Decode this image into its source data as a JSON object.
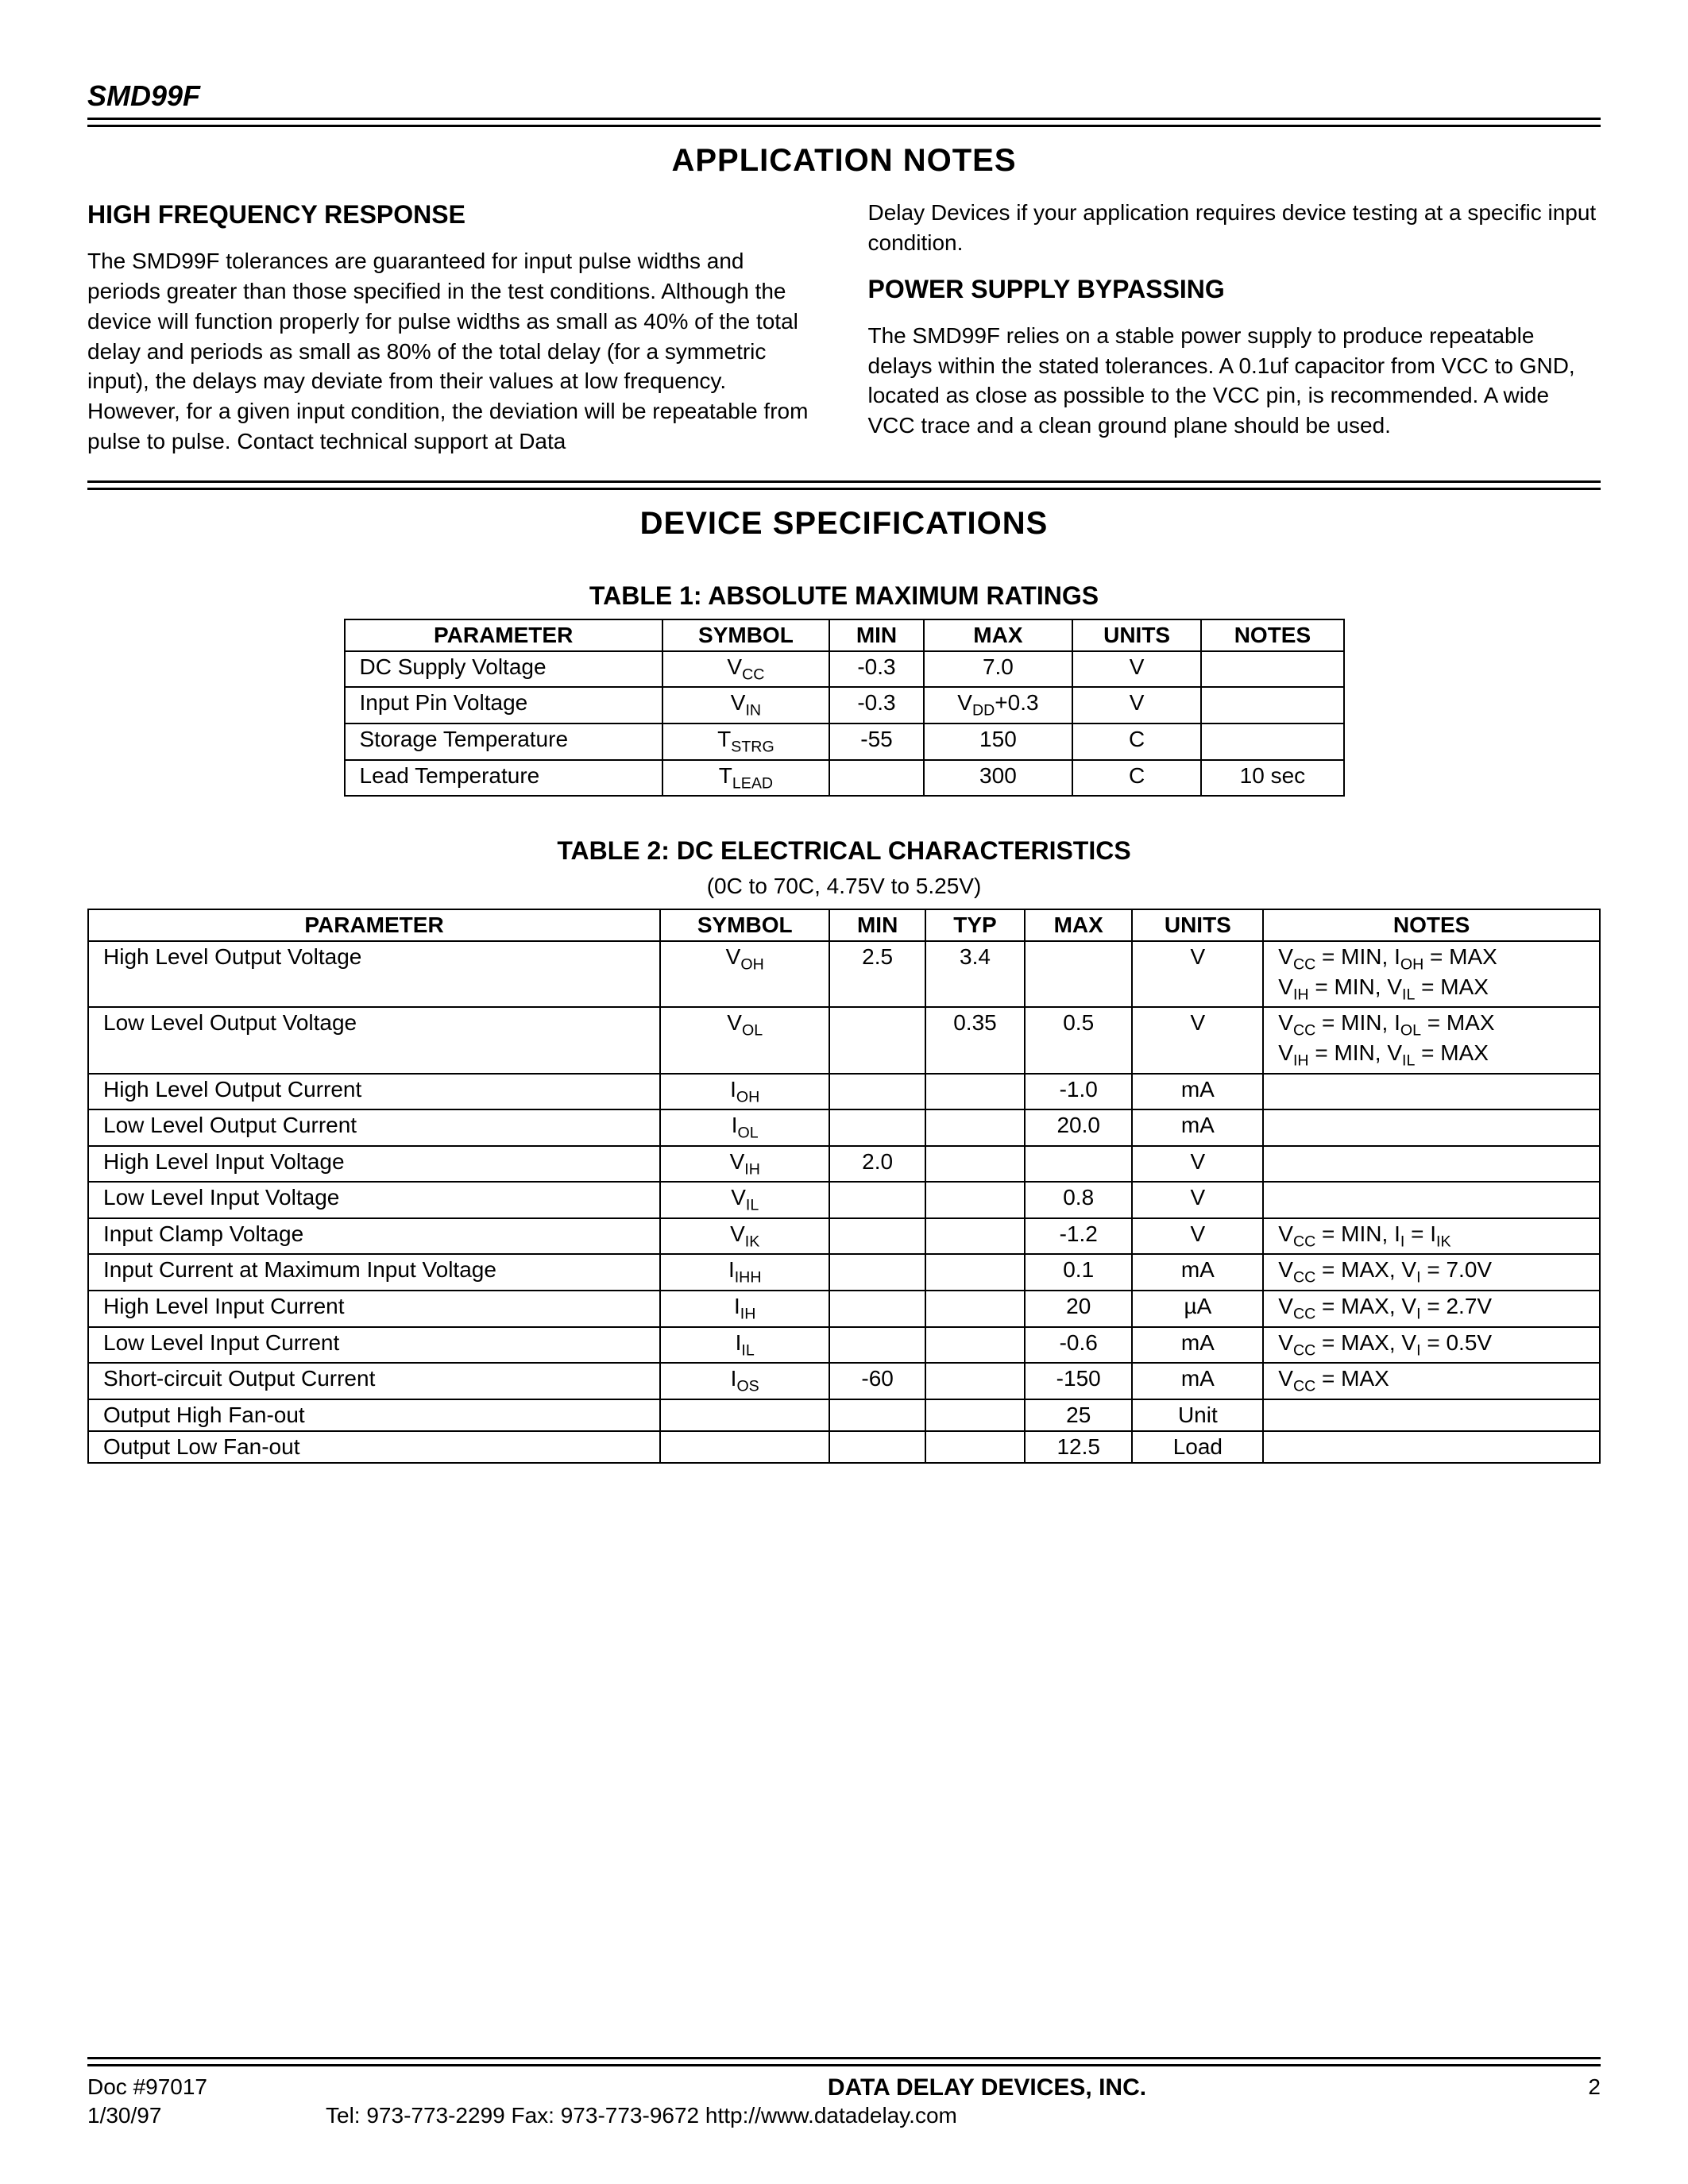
{
  "header": {
    "part_number": "SMD99F"
  },
  "section1": {
    "title": "APPLICATION NOTES",
    "left": {
      "heading": "HIGH FREQUENCY RESPONSE",
      "text": "The SMD99F tolerances are guaranteed for input pulse widths and periods greater than those specified in the test conditions.  Although the device will function properly for pulse widths as small as 40% of the total delay and periods as small as 80% of the total delay (for a symmetric input), the delays may deviate from their values at low frequency.  However, for a given input condition, the deviation will be repeatable from pulse to pulse.  Contact technical support at Data"
    },
    "right": {
      "cont": "Delay Devices if your application requires device testing at a specific input condition.",
      "heading": "POWER SUPPLY BYPASSING",
      "text": "The SMD99F relies on a stable power supply to produce repeatable delays within the stated tolerances.  A 0.1uf capacitor from VCC to GND, located as close as possible to the VCC pin, is recommended.  A wide VCC trace and a clean ground plane should be used."
    }
  },
  "section2": {
    "title": "DEVICE SPECIFICATIONS"
  },
  "table1": {
    "title": "TABLE 1:  ABSOLUTE MAXIMUM RATINGS",
    "columns": [
      "PARAMETER",
      "SYMBOL",
      "MIN",
      "MAX",
      "UNITS",
      "NOTES"
    ],
    "rows": [
      {
        "param": "DC Supply Voltage",
        "sym_base": "V",
        "sym_sub": "CC",
        "min": "-0.3",
        "max": "7.0",
        "units": "V",
        "notes": ""
      },
      {
        "param": "Input Pin Voltage",
        "sym_base": "V",
        "sym_sub": "IN",
        "min": "-0.3",
        "max_complex": {
          "base": "V",
          "sub": "DD",
          "suffix": "+0.3"
        },
        "units": "V",
        "notes": ""
      },
      {
        "param": "Storage Temperature",
        "sym_base": "T",
        "sym_sub": "STRG",
        "min": "-55",
        "max": "150",
        "units": "C",
        "notes": ""
      },
      {
        "param": "Lead Temperature",
        "sym_base": "T",
        "sym_sub": "LEAD",
        "min": "",
        "max": "300",
        "units": "C",
        "notes": "10 sec"
      }
    ]
  },
  "table2": {
    "title": "TABLE 2:  DC ELECTRICAL CHARACTERISTICS",
    "subtitle": "(0C to 70C, 4.75V to 5.25V)",
    "columns": [
      "PARAMETER",
      "SYMBOL",
      "MIN",
      "TYP",
      "MAX",
      "UNITS",
      "NOTES"
    ],
    "rows": [
      {
        "param": "High Level Output Voltage",
        "sym_base": "V",
        "sym_sub": "OH",
        "min": "2.5",
        "typ": "3.4",
        "max": "",
        "units": "V",
        "notes_segs": [
          {
            "b": "V",
            "s": "CC",
            "t": " = MIN, "
          },
          {
            "b": "I",
            "s": "OH",
            "t": " = MAX"
          },
          {
            "br": true
          },
          {
            "b": "V",
            "s": "IH",
            "t": " = MIN, "
          },
          {
            "b": "V",
            "s": "IL",
            "t": " = MAX"
          }
        ]
      },
      {
        "param": "Low Level Output Voltage",
        "sym_base": "V",
        "sym_sub": "OL",
        "min": "",
        "typ": "0.35",
        "max": "0.5",
        "units": "V",
        "notes_segs": [
          {
            "b": "V",
            "s": "CC",
            "t": " = MIN, "
          },
          {
            "b": "I",
            "s": "OL",
            "t": " = MAX"
          },
          {
            "br": true
          },
          {
            "b": "V",
            "s": "IH",
            "t": " = MIN, "
          },
          {
            "b": "V",
            "s": "IL",
            "t": " = MAX"
          }
        ]
      },
      {
        "param": "High Level Output Current",
        "sym_base": "I",
        "sym_sub": "OH",
        "min": "",
        "typ": "",
        "max": "-1.0",
        "units": "mA",
        "notes_segs": []
      },
      {
        "param": "Low Level Output Current",
        "sym_base": "I",
        "sym_sub": "OL",
        "min": "",
        "typ": "",
        "max": "20.0",
        "units": "mA",
        "notes_segs": []
      },
      {
        "param": "High Level Input Voltage",
        "sym_base": "V",
        "sym_sub": "IH",
        "min": "2.0",
        "typ": "",
        "max": "",
        "units": "V",
        "notes_segs": []
      },
      {
        "param": "Low Level Input Voltage",
        "sym_base": "V",
        "sym_sub": "IL",
        "min": "",
        "typ": "",
        "max": "0.8",
        "units": "V",
        "notes_segs": []
      },
      {
        "param": "Input Clamp Voltage",
        "sym_base": "V",
        "sym_sub": "IK",
        "min": "",
        "typ": "",
        "max": "-1.2",
        "units": "V",
        "notes_segs": [
          {
            "b": "V",
            "s": "CC",
            "t": " = MIN, "
          },
          {
            "b": "I",
            "s": "I",
            "t": " = "
          },
          {
            "b": "I",
            "s": "IK",
            "t": ""
          }
        ]
      },
      {
        "param": "Input Current at Maximum Input Voltage",
        "sym_base": "I",
        "sym_sub": "IHH",
        "min": "",
        "typ": "",
        "max": "0.1",
        "units": "mA",
        "notes_segs": [
          {
            "b": "V",
            "s": "CC",
            "t": " = MAX, "
          },
          {
            "b": "V",
            "s": "I",
            "t": " = 7.0V"
          }
        ]
      },
      {
        "param": "High Level Input Current",
        "sym_base": "I",
        "sym_sub": "IH",
        "min": "",
        "typ": "",
        "max": "20",
        "units": "µA",
        "notes_segs": [
          {
            "b": "V",
            "s": "CC",
            "t": " = MAX, "
          },
          {
            "b": "V",
            "s": "I",
            "t": " = 2.7V"
          }
        ]
      },
      {
        "param": "Low Level Input Current",
        "sym_base": "I",
        "sym_sub": "IL",
        "min": "",
        "typ": "",
        "max": "-0.6",
        "units": "mA",
        "notes_segs": [
          {
            "b": "V",
            "s": "CC",
            "t": " = MAX, "
          },
          {
            "b": "V",
            "s": "I",
            "t": " = 0.5V"
          }
        ]
      },
      {
        "param": "Short-circuit Output Current",
        "sym_base": "I",
        "sym_sub": "OS",
        "min": "-60",
        "typ": "",
        "max": "-150",
        "units": "mA",
        "notes_segs": [
          {
            "b": "V",
            "s": "CC",
            "t": " = MAX"
          }
        ]
      },
      {
        "param": "Output High Fan-out",
        "sym_base": "",
        "sym_sub": "",
        "min": "",
        "typ": "",
        "max": "25",
        "units": "Unit",
        "notes_segs": []
      },
      {
        "param": "Output Low Fan-out",
        "sym_base": "",
        "sym_sub": "",
        "min": "",
        "typ": "",
        "max": "12.5",
        "units": "Load",
        "notes_segs": []
      }
    ]
  },
  "footer": {
    "doc": "Doc #97017",
    "company": "DATA DELAY DEVICES, INC.",
    "page": "2",
    "date": "1/30/97",
    "contact": "Tel: 973-773-2299    Fax: 973-773-9672    http://www.datadelay.com"
  }
}
